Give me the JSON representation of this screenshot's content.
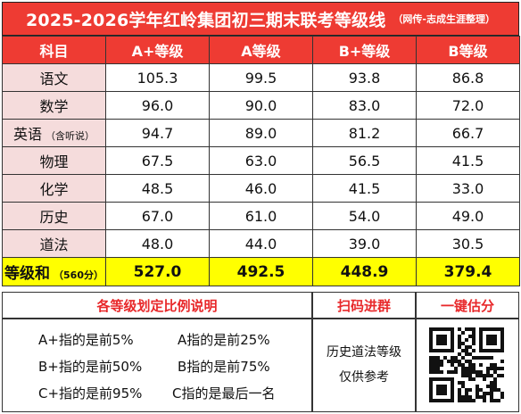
{
  "title": "2025-2026学年红岭集团初三期末联考等级线",
  "title_note": "（网传-志成生涯整理）",
  "table": {
    "headers": [
      "科目",
      "A+等级",
      "A等级",
      "B+等级",
      "B等级"
    ],
    "rows": [
      {
        "subject": "语文",
        "note": "",
        "values": [
          "105.3",
          "99.5",
          "93.8",
          "86.8"
        ]
      },
      {
        "subject": "数学",
        "note": "",
        "values": [
          "96.0",
          "90.0",
          "83.0",
          "72.0"
        ]
      },
      {
        "subject": "英语",
        "note": "（含听说）",
        "values": [
          "94.7",
          "89.0",
          "81.2",
          "66.7"
        ]
      },
      {
        "subject": "物理",
        "note": "",
        "values": [
          "67.5",
          "63.0",
          "56.5",
          "41.5"
        ]
      },
      {
        "subject": "化学",
        "note": "",
        "values": [
          "48.5",
          "46.0",
          "41.5",
          "33.0"
        ]
      },
      {
        "subject": "历史",
        "note": "",
        "values": [
          "67.0",
          "61.0",
          "54.0",
          "49.0"
        ]
      },
      {
        "subject": "道法",
        "note": "",
        "values": [
          "48.0",
          "44.0",
          "39.0",
          "30.5"
        ]
      }
    ],
    "total": {
      "label": "等级和",
      "note": "（560分）",
      "values": [
        "527.0",
        "492.5",
        "448.9",
        "379.4"
      ]
    }
  },
  "bottom": {
    "ratio_title": "各等级划定比例说明",
    "scan_title": "扫码进群",
    "estimate_title": "一键估分",
    "rules": [
      [
        "A+指的是前5%",
        "A指的是前25%"
      ],
      [
        "B+指的是前50%",
        "B指的是前75%"
      ],
      [
        "C+指的是前95%",
        "C指的是最后一名"
      ]
    ],
    "history_note_1": "历史道法等级",
    "history_note_2": "仅供参考"
  },
  "colors": {
    "header_red": "#ee3b33",
    "subject_pink": "#f5dcdc",
    "total_yellow": "#ffff00",
    "accent_red": "#e8282a"
  }
}
